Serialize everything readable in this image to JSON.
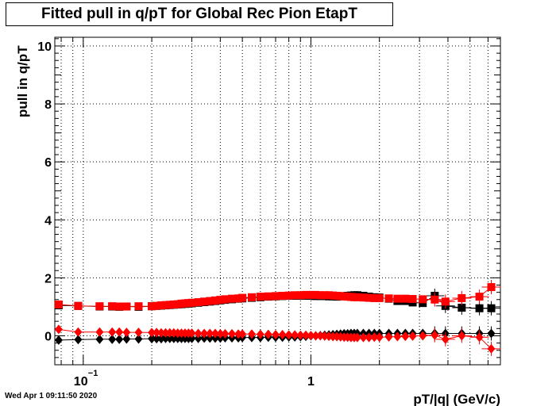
{
  "title": "Fitted pull in q/pT for Global Rec Pion EtapT",
  "timestamp": "Wed Apr  1 09:11:50 2020",
  "chart_data": {
    "type": "scatter",
    "title": "Fitted pull in q/pT for Global Rec Pion EtapT",
    "xlabel": "pT/|q| (GeV/c)",
    "ylabel": "pull in q/pT",
    "xscale": "log",
    "xlim": [
      0.075,
      6.8
    ],
    "ylim": [
      -1,
      10.3
    ],
    "grid": true,
    "yticks": [
      {
        "value": 0,
        "label": "0"
      },
      {
        "value": 2,
        "label": "2"
      },
      {
        "value": 4,
        "label": "4"
      },
      {
        "value": 6,
        "label": "6"
      },
      {
        "value": 8,
        "label": "8"
      },
      {
        "value": 10,
        "label": "10"
      }
    ],
    "xticks": [
      {
        "value": 0.1,
        "label": "10",
        "sup": "−1"
      },
      {
        "value": 1,
        "label": "1",
        "sup": ""
      }
    ],
    "x": [
      0.078,
      0.095,
      0.118,
      0.134,
      0.144,
      0.155,
      0.175,
      0.2,
      0.21,
      0.22,
      0.23,
      0.24,
      0.25,
      0.26,
      0.27,
      0.28,
      0.29,
      0.3,
      0.32,
      0.34,
      0.36,
      0.38,
      0.4,
      0.42,
      0.45,
      0.48,
      0.5,
      0.55,
      0.6,
      0.65,
      0.7,
      0.75,
      0.8,
      0.85,
      0.9,
      0.95,
      1.0,
      1.05,
      1.1,
      1.15,
      1.2,
      1.25,
      1.3,
      1.35,
      1.4,
      1.45,
      1.5,
      1.55,
      1.6,
      1.7,
      1.8,
      1.9,
      2.0,
      2.2,
      2.4,
      2.6,
      2.8,
      3.1,
      3.5,
      3.9,
      4.6,
      5.5,
      6.2
    ],
    "series": [
      {
        "color": "#000000",
        "marker": "square",
        "values": [
          1.05,
          1.03,
          1.01,
          1.01,
          1.0,
          1.01,
          1.0,
          1.02,
          1.03,
          1.04,
          1.05,
          1.06,
          1.07,
          1.08,
          1.09,
          1.1,
          1.11,
          1.12,
          1.14,
          1.16,
          1.18,
          1.2,
          1.22,
          1.24,
          1.26,
          1.28,
          1.29,
          1.31,
          1.33,
          1.35,
          1.36,
          1.37,
          1.38,
          1.38,
          1.38,
          1.38,
          1.38,
          1.37,
          1.37,
          1.37,
          1.36,
          1.36,
          1.35,
          1.36,
          1.37,
          1.38,
          1.39,
          1.4,
          1.4,
          1.38,
          1.35,
          1.33,
          1.32,
          1.28,
          1.2,
          1.2,
          1.15,
          1.13,
          1.38,
          1.03,
          0.97,
          0.95,
          0.95
        ]
      },
      {
        "color": "#ff0000",
        "marker": "square",
        "values": [
          1.08,
          1.03,
          1.02,
          1.02,
          1.01,
          1.01,
          1.02,
          1.02,
          1.03,
          1.05,
          1.06,
          1.07,
          1.08,
          1.09,
          1.11,
          1.12,
          1.13,
          1.14,
          1.16,
          1.18,
          1.2,
          1.22,
          1.24,
          1.26,
          1.28,
          1.29,
          1.31,
          1.33,
          1.35,
          1.36,
          1.37,
          1.38,
          1.39,
          1.4,
          1.4,
          1.41,
          1.41,
          1.41,
          1.4,
          1.4,
          1.4,
          1.39,
          1.38,
          1.37,
          1.36,
          1.35,
          1.34,
          1.33,
          1.33,
          1.32,
          1.31,
          1.3,
          1.3,
          1.29,
          1.28,
          1.28,
          1.27,
          1.26,
          1.25,
          1.18,
          1.3,
          1.35,
          1.68
        ]
      },
      {
        "color": "#000000",
        "marker": "diamond",
        "values": [
          -0.15,
          -0.13,
          -0.12,
          -0.12,
          -0.12,
          -0.11,
          -0.11,
          -0.1,
          -0.1,
          -0.1,
          -0.09,
          -0.09,
          -0.09,
          -0.09,
          -0.09,
          -0.09,
          -0.09,
          -0.09,
          -0.09,
          -0.08,
          -0.08,
          -0.08,
          -0.08,
          -0.07,
          -0.07,
          -0.07,
          -0.06,
          -0.06,
          -0.06,
          -0.05,
          -0.05,
          -0.05,
          -0.04,
          -0.04,
          -0.03,
          -0.02,
          0.0,
          0.0,
          0.01,
          0.02,
          0.03,
          0.04,
          0.05,
          0.06,
          0.07,
          0.07,
          0.08,
          0.08,
          0.08,
          0.08,
          0.08,
          0.08,
          0.08,
          0.08,
          0.08,
          0.08,
          0.08,
          0.08,
          0.08,
          0.08,
          0.08,
          0.08,
          0.08
        ]
      },
      {
        "color": "#ff0000",
        "marker": "diamond",
        "values": [
          0.22,
          0.13,
          0.13,
          0.13,
          0.13,
          0.12,
          0.12,
          0.11,
          0.11,
          0.1,
          0.1,
          0.1,
          0.1,
          0.09,
          0.09,
          0.09,
          0.09,
          0.09,
          0.08,
          0.08,
          0.08,
          0.08,
          0.07,
          0.07,
          0.07,
          0.06,
          0.06,
          0.06,
          0.05,
          0.05,
          0.04,
          0.04,
          0.03,
          0.03,
          0.02,
          0.02,
          0.01,
          0.0,
          0.0,
          -0.01,
          -0.02,
          -0.03,
          -0.03,
          -0.04,
          -0.05,
          -0.05,
          -0.06,
          -0.06,
          -0.06,
          -0.06,
          -0.06,
          -0.05,
          -0.05,
          -0.04,
          -0.03,
          -0.02,
          -0.01,
          0.0,
          0.02,
          -0.12,
          0.0,
          -0.05,
          -0.45
        ]
      }
    ]
  }
}
